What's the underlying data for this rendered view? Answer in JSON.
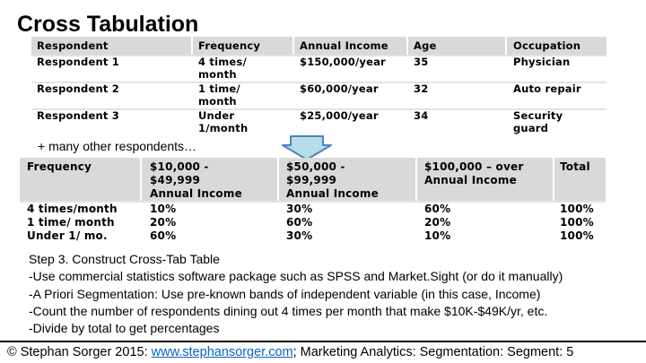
{
  "title": "Cross Tabulation",
  "table1": {
    "headers": [
      "Respondent",
      "Frequency",
      "Annual Income",
      "Age",
      "Occupation"
    ],
    "rows": [
      {
        "respondent": "Respondent 1",
        "frequency": [
          "4 times/",
          "month"
        ],
        "income": "$150,000/year",
        "age": "35",
        "occupation": [
          "Physician",
          ""
        ]
      },
      {
        "respondent": "Respondent 2",
        "frequency": [
          "1 time/",
          "month"
        ],
        "income": "$60,000/year",
        "age": "32",
        "occupation": [
          "Auto repair",
          ""
        ]
      },
      {
        "respondent": "Respondent 3",
        "frequency": [
          "Under",
          "1/month"
        ],
        "income": "$25,000/year",
        "age": "34",
        "occupation": [
          "Security",
          "guard"
        ]
      }
    ]
  },
  "more_respondents": "+ many other respondents…",
  "table2": {
    "headers": [
      [
        "Frequency",
        "",
        ""
      ],
      [
        "$10,000 -",
        "$49,999",
        "Annual Income"
      ],
      [
        "$50,000 -",
        "$99,999",
        "Annual Income"
      ],
      [
        "$100,000 – over",
        "Annual Income",
        ""
      ],
      [
        "Total",
        "",
        ""
      ]
    ],
    "rows": [
      [
        "4 times/month",
        "10%",
        "30%",
        "60%",
        "100%"
      ],
      [
        "1 time/ month",
        "20%",
        "60%",
        "20%",
        "100%"
      ],
      [
        "Under 1/ mo.",
        "60%",
        "30%",
        "10%",
        "100%"
      ]
    ]
  },
  "bullets": [
    "Step 3. Construct Cross-Tab Table",
    "-Use commercial statistics software package such as SPSS and Market.Sight (or do it manually)",
    "-A Priori Segmentation: Use pre-known bands of independent variable (in this case, Income)",
    "-Count the number of respondents dining out 4 times per month that make $10K-$49K/yr, etc.",
    "-Divide by total to get percentages"
  ],
  "footer": {
    "prefix": "© Stephan Sorger 2015: ",
    "link": "www.stephansorger.com",
    "suffix": "; Marketing Analytics: Segmentation: Segment: 5"
  },
  "colors": {
    "header_fill": "#d9d9d9",
    "arrow_fill": "#b7dee8",
    "arrow_stroke": "#4f81bd",
    "link": "#0563c1"
  }
}
